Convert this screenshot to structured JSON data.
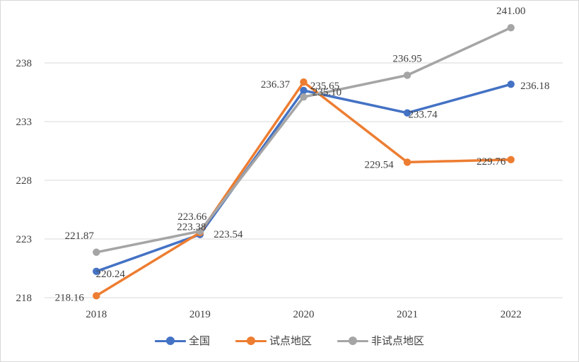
{
  "chart_data": {
    "type": "line",
    "categories": [
      "2018",
      "2019",
      "2020",
      "2021",
      "2022"
    ],
    "ylim": [
      218,
      243
    ],
    "yticks": [
      218,
      223,
      228,
      233,
      238
    ],
    "grid": true,
    "legend_position": "bottom",
    "series": [
      {
        "name": "全国",
        "color": "#4472C4",
        "values": [
          220.24,
          223.38,
          235.65,
          233.74,
          236.18
        ],
        "labels": [
          "220.24",
          "223.38",
          "235.65",
          "233.74",
          "236.18"
        ]
      },
      {
        "name": "试点地区",
        "color": "#ED7D31",
        "values": [
          218.16,
          223.54,
          236.37,
          229.54,
          229.76
        ],
        "labels": [
          "218.16",
          "223.54",
          "236.37",
          "229.54",
          "229.76"
        ]
      },
      {
        "name": "非试点地区",
        "color": "#A5A5A5",
        "values": [
          221.87,
          223.66,
          235.1,
          236.95,
          241.0
        ],
        "labels": [
          "221.87",
          "223.66",
          "235.10",
          "236.95",
          "241.00"
        ]
      }
    ]
  }
}
